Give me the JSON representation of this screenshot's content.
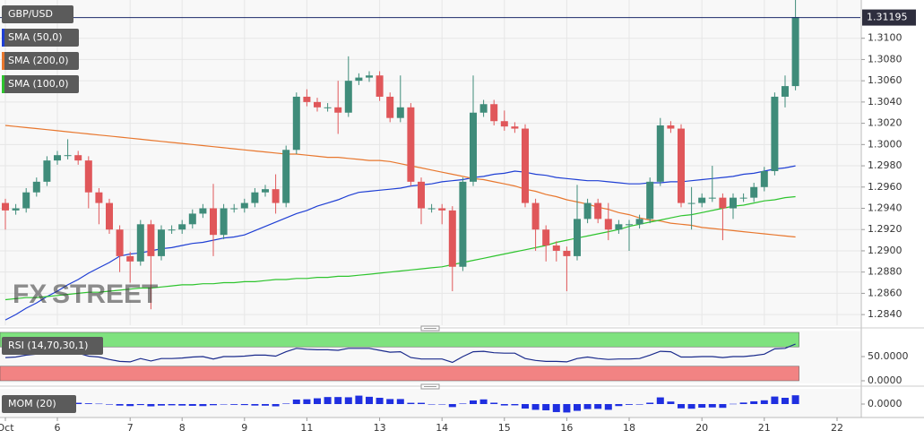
{
  "chart_data": [
    {
      "type": "candlestick",
      "title": "GBP/USD",
      "categories": [
        "Oct",
        null,
        null,
        null,
        null,
        "6",
        null,
        null,
        null,
        null,
        null,
        null,
        "7",
        null,
        null,
        null,
        null,
        "8",
        null,
        null,
        null,
        null,
        null,
        "9",
        null,
        null,
        null,
        null,
        null,
        "11",
        null,
        null,
        null,
        null,
        null,
        null,
        "13",
        null,
        null,
        null,
        null,
        null,
        "14",
        null,
        null,
        null,
        null,
        null,
        "15",
        null,
        null,
        null,
        null,
        null,
        "16",
        null,
        null,
        null,
        null,
        null,
        "18",
        null,
        null,
        null,
        null,
        null,
        null,
        "20",
        null,
        null,
        null,
        null,
        null,
        "21",
        null,
        null,
        null,
        null,
        null,
        null,
        "22"
      ],
      "open": [
        1.2945,
        1.2938,
        1.294,
        1.2955,
        1.2965,
        1.2985,
        1.299,
        1.299,
        1.2985,
        1.2955,
        1.2945,
        1.292,
        1.2895,
        1.289,
        1.2925,
        1.2895,
        1.292,
        1.292,
        1.2925,
        1.2935,
        1.294,
        1.2915,
        1.294,
        1.294,
        1.2945,
        1.2955,
        1.2958,
        1.2945,
        1.2995,
        1.3045,
        1.304,
        1.3035,
        1.3035,
        1.303,
        1.306,
        1.3063,
        1.3065,
        1.3045,
        1.3025,
        1.3035,
        1.2965,
        1.294,
        1.294,
        1.2938,
        1.2885,
        1.2965,
        1.303,
        1.3038,
        1.3022,
        1.3017,
        1.3015,
        1.2945,
        1.292,
        1.2905,
        1.29,
        1.2895,
        1.293,
        1.2945,
        1.293,
        1.292,
        1.2925,
        1.2925,
        1.293,
        1.2965,
        1.3018,
        1.3015,
        1.2945,
        1.2945,
        1.295,
        1.295,
        1.294,
        1.295,
        1.295,
        1.296,
        1.2975,
        1.3045,
        1.3055,
        null,
        null,
        null,
        null
      ],
      "high": [
        1.2949,
        1.2944,
        1.2959,
        1.2969,
        1.2989,
        1.2994,
        1.3005,
        1.2994,
        1.2989,
        1.2959,
        1.2949,
        1.2924,
        1.2899,
        1.2929,
        1.2929,
        1.2924,
        1.2924,
        1.2929,
        1.2939,
        1.2944,
        1.2963,
        1.2944,
        1.2944,
        1.2949,
        1.2959,
        1.2962,
        1.2972,
        1.2999,
        1.3049,
        1.3052,
        1.3044,
        1.3039,
        1.306,
        1.3083,
        1.3067,
        1.3069,
        1.3069,
        1.3049,
        1.3065,
        1.3039,
        1.2969,
        1.2944,
        1.2944,
        1.2942,
        1.2969,
        1.3065,
        1.3042,
        1.3042,
        1.3032,
        1.3021,
        1.3019,
        1.2949,
        1.2924,
        1.2909,
        1.2904,
        1.2962,
        1.2949,
        1.2949,
        1.2945,
        1.2929,
        1.2929,
        1.2934,
        1.2969,
        1.3025,
        1.3022,
        1.3019,
        1.296,
        1.2954,
        1.298,
        1.2954,
        1.2954,
        1.2954,
        1.2964,
        1.2979,
        1.3049,
        1.3065,
        1.3136,
        null,
        null,
        null,
        null
      ],
      "low": [
        1.292,
        1.2934,
        1.2936,
        1.2951,
        1.2961,
        1.2981,
        1.2986,
        1.2981,
        1.294,
        1.2925,
        1.2916,
        1.288,
        1.287,
        1.2886,
        1.2845,
        1.2891,
        1.2916,
        1.2916,
        1.2921,
        1.2931,
        1.2895,
        1.2911,
        1.2936,
        1.2936,
        1.2941,
        1.2951,
        1.2935,
        1.2941,
        1.2991,
        1.3036,
        1.3031,
        1.3031,
        1.301,
        1.3026,
        1.3056,
        1.3059,
        1.3041,
        1.3021,
        1.3021,
        1.2961,
        1.2925,
        1.2936,
        1.2925,
        1.2862,
        1.2881,
        1.2961,
        1.3026,
        1.3018,
        1.3013,
        1.3011,
        1.2941,
        1.29,
        1.289,
        1.289,
        1.2862,
        1.2891,
        1.2926,
        1.2926,
        1.291,
        1.2916,
        1.29,
        1.2921,
        1.2926,
        1.2961,
        1.3011,
        1.2941,
        1.292,
        1.2941,
        1.2946,
        1.291,
        1.293,
        1.2946,
        1.2946,
        1.2956,
        1.2971,
        1.3035,
        1.3051,
        null,
        null,
        null,
        null
      ],
      "close": [
        1.2938,
        1.294,
        1.2955,
        1.2965,
        1.2985,
        1.299,
        1.299,
        1.2985,
        1.2955,
        1.2945,
        1.292,
        1.2895,
        1.289,
        1.2925,
        1.2895,
        1.292,
        1.292,
        1.2925,
        1.2935,
        1.294,
        1.2915,
        1.294,
        1.294,
        1.2945,
        1.2955,
        1.2958,
        1.2945,
        1.2995,
        1.3045,
        1.304,
        1.3035,
        1.3035,
        1.303,
        1.306,
        1.3063,
        1.3065,
        1.3045,
        1.3025,
        1.3035,
        1.2965,
        1.294,
        1.294,
        1.2938,
        1.2885,
        1.2965,
        1.303,
        1.3038,
        1.3022,
        1.3017,
        1.3015,
        1.2945,
        1.292,
        1.2905,
        1.29,
        1.2895,
        1.293,
        1.2945,
        1.293,
        1.292,
        1.2925,
        1.2925,
        1.293,
        1.2965,
        1.3018,
        1.3015,
        1.2945,
        1.2945,
        1.295,
        1.295,
        1.294,
        1.295,
        1.295,
        1.296,
        1.2975,
        1.3045,
        1.3055,
        1.312,
        null,
        null,
        null,
        null
      ],
      "color_up": "#3f8c7a",
      "color_down": "#e0575a",
      "series": [
        {
          "name": "SMA (50,0)",
          "color": "#1f3fd4",
          "values": [
            1.2835,
            1.284,
            1.2846,
            1.2851,
            1.2857,
            1.2862,
            1.2868,
            1.2873,
            1.2879,
            1.2884,
            1.2889,
            1.2895,
            1.2897,
            1.2898,
            1.29,
            1.2902,
            1.2903,
            1.2905,
            1.2907,
            1.2908,
            1.291,
            1.2912,
            1.2913,
            1.2915,
            1.2919,
            1.2923,
            1.2927,
            1.2931,
            1.2935,
            1.2938,
            1.2942,
            1.2945,
            1.2948,
            1.2952,
            1.2955,
            1.2956,
            1.2957,
            1.2958,
            1.2959,
            1.2961,
            1.2962,
            1.2963,
            1.2965,
            1.2966,
            1.2967,
            1.2969,
            1.297,
            1.2972,
            1.2973,
            1.2975,
            1.2974,
            1.2972,
            1.2971,
            1.2969,
            1.2968,
            1.2967,
            1.2966,
            1.2966,
            1.2965,
            1.2964,
            1.2963,
            1.2963,
            1.2964,
            1.2964,
            1.2965,
            1.2965,
            1.2966,
            1.2967,
            1.2968,
            1.2969,
            1.297,
            1.2972,
            1.2973,
            1.2975,
            1.2977,
            1.2978,
            1.298,
            null,
            null,
            null,
            null
          ]
        },
        {
          "name": "SMA (200,0)",
          "color": "#e8772e",
          "values": [
            1.3018,
            1.3017,
            1.3016,
            1.3015,
            1.3014,
            1.3013,
            1.3012,
            1.3011,
            1.301,
            1.3009,
            1.3008,
            1.3007,
            1.3006,
            1.3005,
            1.3004,
            1.3003,
            1.3002,
            1.3001,
            1.3,
            1.2999,
            1.2998,
            1.2997,
            1.2996,
            1.2995,
            1.2994,
            1.2993,
            1.2992,
            1.2991,
            1.2991,
            1.299,
            1.2989,
            1.2988,
            1.2988,
            1.2987,
            1.2986,
            1.2985,
            1.2985,
            1.2984,
            1.2982,
            1.298,
            1.2978,
            1.2976,
            1.2974,
            1.2972,
            1.297,
            1.2968,
            1.2967,
            1.2965,
            1.2963,
            1.2961,
            1.2958,
            1.2956,
            1.2953,
            1.2951,
            1.2948,
            1.2946,
            1.2944,
            1.2941,
            1.2939,
            1.2936,
            1.2934,
            1.2931,
            1.2929,
            1.2928,
            1.2926,
            1.2925,
            1.2924,
            1.2922,
            1.2921,
            1.292,
            1.2919,
            1.2918,
            1.2917,
            1.2916,
            1.2915,
            1.2914,
            1.2913,
            null,
            null,
            null,
            null
          ]
        },
        {
          "name": "SMA (100,0)",
          "color": "#2ec42e",
          "values": [
            1.2854,
            1.2855,
            1.2856,
            1.2856,
            1.2857,
            1.2858,
            1.2859,
            1.286,
            1.2861,
            1.2861,
            1.2862,
            1.2863,
            1.2864,
            1.2865,
            1.2865,
            1.2866,
            1.2867,
            1.2868,
            1.2868,
            1.2869,
            1.2869,
            1.287,
            1.287,
            1.2871,
            1.2871,
            1.2872,
            1.2873,
            1.2873,
            1.2874,
            1.2874,
            1.2875,
            1.2875,
            1.2876,
            1.2876,
            1.2877,
            1.2878,
            1.2879,
            1.288,
            1.2881,
            1.2882,
            1.2883,
            1.2884,
            1.2885,
            1.2887,
            1.2889,
            1.2891,
            1.2893,
            1.2895,
            1.2897,
            1.2899,
            1.2901,
            1.2903,
            1.2905,
            1.2908,
            1.291,
            1.2912,
            1.2914,
            1.2916,
            1.2918,
            1.292,
            1.2923,
            1.2925,
            1.2927,
            1.2929,
            1.2931,
            1.2933,
            1.2934,
            1.2936,
            1.2938,
            1.294,
            1.2942,
            1.2943,
            1.2945,
            1.2947,
            1.2948,
            1.295,
            1.2951,
            null,
            null,
            null,
            null
          ]
        }
      ],
      "ylim": [
        1.283,
        1.3136
      ],
      "yticks": [
        {
          "value": 1.284,
          "label": "1.2840"
        },
        {
          "value": 1.286,
          "label": "1.2860"
        },
        {
          "value": 1.288,
          "label": "1.2880"
        },
        {
          "value": 1.29,
          "label": "1.2900"
        },
        {
          "value": 1.292,
          "label": "1.2920"
        },
        {
          "value": 1.294,
          "label": "1.2940"
        },
        {
          "value": 1.296,
          "label": "1.2960"
        },
        {
          "value": 1.298,
          "label": "1.2980"
        },
        {
          "value": 1.3,
          "label": "1.3000"
        },
        {
          "value": 1.302,
          "label": "1.3020"
        },
        {
          "value": 1.304,
          "label": "1.3040"
        },
        {
          "value": 1.306,
          "label": "1.3060"
        },
        {
          "value": 1.308,
          "label": "1.3080"
        },
        {
          "value": 1.31,
          "label": "1.3100"
        }
      ],
      "last_price": 1.31195,
      "grid": true,
      "watermark": {
        "fx": "FX",
        "street": "STREET"
      }
    },
    {
      "type": "line",
      "title": "RSI (14,70,30,1)",
      "color": "#1a2a8c",
      "values": [
        48,
        49,
        53,
        55,
        58,
        59,
        59,
        57,
        51,
        49,
        44,
        40,
        39,
        46,
        41,
        46,
        46,
        47,
        49,
        50,
        45,
        50,
        50,
        51,
        53,
        53,
        51,
        60,
        67,
        65,
        64,
        64,
        63,
        67,
        67,
        67,
        63,
        59,
        60,
        48,
        45,
        45,
        45,
        38,
        50,
        60,
        61,
        58,
        57,
        57,
        46,
        42,
        40,
        40,
        39,
        46,
        49,
        46,
        44,
        45,
        45,
        46,
        53,
        61,
        60,
        49,
        49,
        50,
        50,
        48,
        50,
        50,
        52,
        55,
        66,
        67,
        76,
        null,
        null,
        null,
        null
      ],
      "bands": [
        {
          "from": 70,
          "to": 100,
          "color": "#7fe27f"
        },
        {
          "from": 0,
          "to": 30,
          "color": "#f28383"
        }
      ],
      "ylim": [
        0,
        100
      ],
      "yticks": [
        {
          "value": 50,
          "label": "50.0000"
        },
        {
          "value": 0,
          "label": "0.0000"
        }
      ]
    },
    {
      "type": "bar",
      "title": "MOM (20)",
      "color": "#1f2fe0",
      "values": [
        0.002,
        0.0022,
        0.003,
        0.0035,
        0.004,
        0.0038,
        0.003,
        0.0025,
        0.0015,
        0.0008,
        -0.001,
        -0.003,
        -0.004,
        -0.002,
        -0.0045,
        -0.003,
        -0.0025,
        -0.003,
        -0.0035,
        -0.004,
        -0.0023,
        0,
        -0.0015,
        -0.002,
        -0.003,
        -0.0032,
        -0.0045,
        0.001,
        0.009,
        0.0095,
        0.0115,
        0.014,
        0.014,
        0.0135,
        0.0168,
        0.0145,
        0.0125,
        0.01,
        0.01,
        0.0025,
        0.0025,
        0,
        -0.0002,
        -0.006,
        0.001,
        0.0072,
        0.0093,
        0.0027,
        -0.0028,
        -0.0025,
        -0.009,
        -0.0115,
        -0.0125,
        -0.016,
        -0.0168,
        -0.0135,
        -0.01,
        -0.0095,
        -0.0115,
        -0.004,
        -0.0015,
        -0.001,
        0.0027,
        0.0133,
        0.005,
        -0.0085,
        -0.0093,
        -0.0072,
        -0.0067,
        -0.0075,
        0.0005,
        0.003,
        0.0055,
        0.0075,
        0.015,
        0.0125,
        0.0175,
        null,
        null,
        null,
        null
      ],
      "ylim": [
        -0.025,
        0.025
      ],
      "yticks": [
        {
          "value": 0,
          "label": "0.0000"
        }
      ]
    }
  ]
}
